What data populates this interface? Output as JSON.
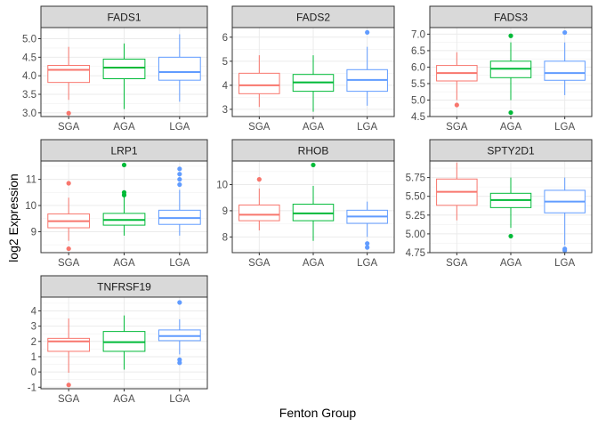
{
  "chart_data": {
    "type": "boxplot",
    "xlabel": "Fenton Group",
    "ylabel": "log2 Expression",
    "categories": [
      "SGA",
      "AGA",
      "LGA"
    ],
    "colors": {
      "SGA": "#F8766D",
      "AGA": "#00BA38",
      "LGA": "#619CFF"
    },
    "grid": true,
    "legend": "none",
    "panels": [
      {
        "title": "FADS1",
        "ylim": [
          2.9,
          5.3
        ],
        "yticks": [
          3.0,
          3.5,
          4.0,
          4.5,
          5.0
        ],
        "ytick_labels": [
          "3.0",
          "3.5",
          "4.0",
          "4.5",
          "5.0"
        ],
        "boxes": [
          {
            "group": "SGA",
            "min": 3.35,
            "q1": 3.82,
            "median": 4.16,
            "q3": 4.28,
            "max": 4.78,
            "outliers": [
              2.99
            ]
          },
          {
            "group": "AGA",
            "min": 3.1,
            "q1": 3.92,
            "median": 4.22,
            "q3": 4.45,
            "max": 4.87,
            "outliers": []
          },
          {
            "group": "LGA",
            "min": 3.3,
            "q1": 3.88,
            "median": 4.1,
            "q3": 4.5,
            "max": 5.12,
            "outliers": []
          }
        ]
      },
      {
        "title": "FADS2",
        "ylim": [
          2.7,
          6.4
        ],
        "yticks": [
          3,
          4,
          5,
          6
        ],
        "ytick_labels": [
          "3",
          "4",
          "5",
          "6"
        ],
        "boxes": [
          {
            "group": "SGA",
            "min": 3.1,
            "q1": 3.65,
            "median": 4.0,
            "q3": 4.5,
            "max": 5.25,
            "outliers": []
          },
          {
            "group": "AGA",
            "min": 2.9,
            "q1": 3.75,
            "median": 4.12,
            "q3": 4.45,
            "max": 5.25,
            "outliers": []
          },
          {
            "group": "LGA",
            "min": 3.15,
            "q1": 3.75,
            "median": 4.22,
            "q3": 4.65,
            "max": 5.6,
            "outliers": [
              6.2
            ]
          }
        ]
      },
      {
        "title": "FADS3",
        "ylim": [
          4.5,
          7.2
        ],
        "yticks": [
          4.5,
          5.0,
          5.5,
          6.0,
          6.5,
          7.0
        ],
        "ytick_labels": [
          "4.5",
          "5.0",
          "5.5",
          "6.0",
          "6.5",
          "7.0"
        ],
        "boxes": [
          {
            "group": "SGA",
            "min": 5.0,
            "q1": 5.58,
            "median": 5.82,
            "q3": 6.05,
            "max": 6.45,
            "outliers": [
              4.85
            ]
          },
          {
            "group": "AGA",
            "min": 5.0,
            "q1": 5.68,
            "median": 5.95,
            "q3": 6.18,
            "max": 6.75,
            "outliers": [
              6.95,
              4.62
            ]
          },
          {
            "group": "LGA",
            "min": 5.15,
            "q1": 5.6,
            "median": 5.82,
            "q3": 6.18,
            "max": 6.75,
            "outliers": [
              7.05
            ]
          }
        ]
      },
      {
        "title": "LRP1",
        "ylim": [
          8.2,
          11.7
        ],
        "yticks": [
          9,
          10,
          11
        ],
        "ytick_labels": [
          "9",
          "10",
          "11"
        ],
        "boxes": [
          {
            "group": "SGA",
            "min": 8.65,
            "q1": 9.15,
            "median": 9.4,
            "q3": 9.68,
            "max": 10.3,
            "outliers": [
              10.85,
              8.35
            ]
          },
          {
            "group": "AGA",
            "min": 8.85,
            "q1": 9.25,
            "median": 9.45,
            "q3": 9.7,
            "max": 10.35,
            "outliers": [
              10.4,
              10.5,
              11.55
            ]
          },
          {
            "group": "LGA",
            "min": 8.85,
            "q1": 9.28,
            "median": 9.52,
            "q3": 9.82,
            "max": 10.6,
            "outliers": [
              10.8,
              11.0,
              11.2,
              11.4
            ]
          }
        ]
      },
      {
        "title": "RHOB",
        "ylim": [
          7.4,
          10.9
        ],
        "yticks": [
          8,
          9,
          10
        ],
        "ytick_labels": [
          "8",
          "9",
          "10"
        ],
        "boxes": [
          {
            "group": "SGA",
            "min": 8.25,
            "q1": 8.62,
            "median": 8.85,
            "q3": 9.22,
            "max": 9.85,
            "outliers": [
              10.2
            ]
          },
          {
            "group": "AGA",
            "min": 7.85,
            "q1": 8.62,
            "median": 8.9,
            "q3": 9.25,
            "max": 9.95,
            "outliers": [
              10.75
            ]
          },
          {
            "group": "LGA",
            "min": 8.0,
            "q1": 8.52,
            "median": 8.78,
            "q3": 9.02,
            "max": 9.35,
            "outliers": [
              7.75,
              7.6
            ]
          }
        ]
      },
      {
        "title": "SPTY2D1",
        "ylim": [
          4.75,
          5.97
        ],
        "yticks": [
          4.75,
          5.0,
          5.25,
          5.5,
          5.75
        ],
        "ytick_labels": [
          "4.75",
          "5.00",
          "5.25",
          "5.50",
          "5.75"
        ],
        "boxes": [
          {
            "group": "SGA",
            "min": 5.18,
            "q1": 5.38,
            "median": 5.56,
            "q3": 5.73,
            "max": 5.95,
            "outliers": []
          },
          {
            "group": "AGA",
            "min": 5.08,
            "q1": 5.35,
            "median": 5.45,
            "q3": 5.54,
            "max": 5.75,
            "outliers": [
              4.97
            ]
          },
          {
            "group": "LGA",
            "min": 4.85,
            "q1": 5.28,
            "median": 5.43,
            "q3": 5.58,
            "max": 5.75,
            "outliers": [
              4.8,
              4.78
            ]
          }
        ]
      },
      {
        "title": "TNFRSF19",
        "ylim": [
          -1.1,
          4.9
        ],
        "yticks": [
          -1,
          0,
          1,
          2,
          3,
          4
        ],
        "ytick_labels": [
          "-1",
          "0",
          "1",
          "2",
          "3",
          "4"
        ],
        "boxes": [
          {
            "group": "SGA",
            "min": -0.05,
            "q1": 1.35,
            "median": 2.0,
            "q3": 2.2,
            "max": 3.5,
            "outliers": [
              -0.85
            ]
          },
          {
            "group": "AGA",
            "min": 0.15,
            "q1": 1.35,
            "median": 1.95,
            "q3": 2.65,
            "max": 3.7,
            "outliers": []
          },
          {
            "group": "LGA",
            "min": 1.15,
            "q1": 2.05,
            "median": 2.35,
            "q3": 2.75,
            "max": 3.45,
            "outliers": [
              4.55,
              0.8,
              0.6
            ]
          }
        ]
      }
    ]
  }
}
